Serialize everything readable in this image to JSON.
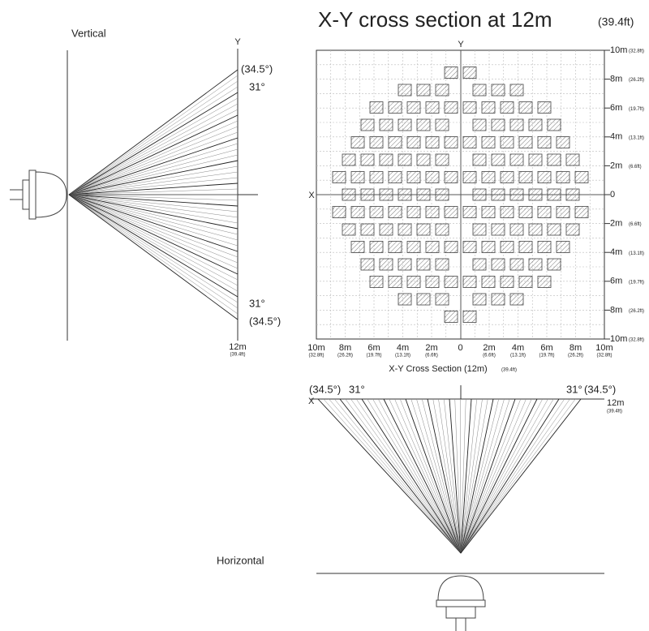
{
  "title": "X-Y cross section at 12m",
  "title_note": "(39.4ft)",
  "vertical": {
    "label": "Vertical",
    "axis": "Y",
    "top_outer": "(34.5°)",
    "top_inner": "31°",
    "bottom_inner": "31°",
    "bottom_outer": "(34.5°)",
    "distance": "12m",
    "distance_ft": "(39.4ft)"
  },
  "cross_section": {
    "y_axis": "Y",
    "x_axis": "X",
    "caption": "X-Y Cross Section (12m)",
    "caption_ft": "(39.4ft)",
    "right_labels": [
      {
        "m": "10m",
        "ft": "(32.8ft)"
      },
      {
        "m": "8m",
        "ft": "(26.2ft)"
      },
      {
        "m": "6m",
        "ft": "(19.7ft)"
      },
      {
        "m": "4m",
        "ft": "(13.1ft)"
      },
      {
        "m": "2m",
        "ft": "(6.6ft)"
      },
      {
        "m": "0"
      },
      {
        "m": "2m",
        "ft": "(6.6ft)"
      },
      {
        "m": "4m",
        "ft": "(13.1ft)"
      },
      {
        "m": "6m",
        "ft": "(19.7ft)"
      },
      {
        "m": "8m",
        "ft": "(26.2ft)"
      },
      {
        "m": "10m",
        "ft": "(32.8ft)"
      }
    ],
    "bottom_labels": [
      {
        "m": "10m",
        "ft": "(32.8ft)"
      },
      {
        "m": "8m",
        "ft": "(26.2ft)"
      },
      {
        "m": "6m",
        "ft": "(19.7ft)"
      },
      {
        "m": "4m",
        "ft": "(13.1ft)"
      },
      {
        "m": "2m",
        "ft": "(6.6ft)"
      },
      {
        "m": "0"
      },
      {
        "m": "2m",
        "ft": "(6.6ft)"
      },
      {
        "m": "4m",
        "ft": "(13.1ft)"
      },
      {
        "m": "6m",
        "ft": "(19.7ft)"
      },
      {
        "m": "8m",
        "ft": "(26.2ft)"
      },
      {
        "m": "10m",
        "ft": "(32.8ft)"
      }
    ]
  },
  "horizontal": {
    "label": "Horizontal",
    "axis": "X",
    "left_outer": "(34.5°)",
    "left_inner": "31°",
    "right_inner": "31°",
    "right_outer": "(34.5°)",
    "distance": "12m",
    "distance_ft": "(39.4ft)"
  }
}
